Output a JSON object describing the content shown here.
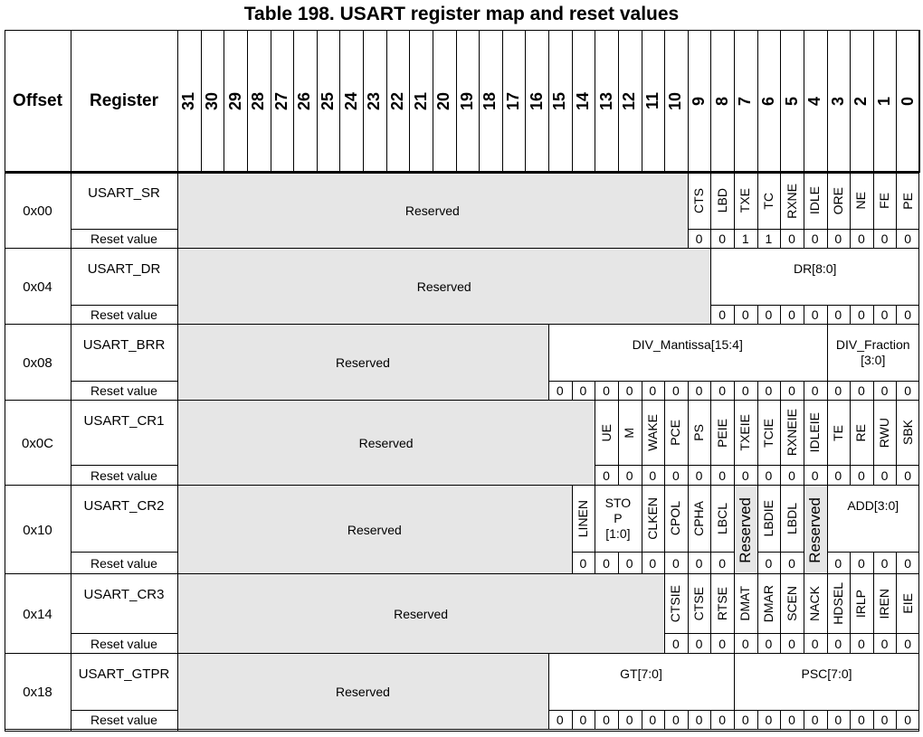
{
  "caption": "Table 198. USART register map and reset values",
  "header": {
    "offset": "Offset",
    "register": "Register"
  },
  "bits": [
    "31",
    "30",
    "29",
    "28",
    "27",
    "26",
    "25",
    "24",
    "23",
    "22",
    "21",
    "20",
    "19",
    "18",
    "17",
    "16",
    "15",
    "14",
    "13",
    "12",
    "11",
    "10",
    "9",
    "8",
    "7",
    "6",
    "5",
    "4",
    "3",
    "2",
    "1",
    "0"
  ],
  "reset_label": "Reset value",
  "rows": [
    {
      "offset": "0x00",
      "register": "USART_SR",
      "fields": [
        {
          "label": "Reserved",
          "hi": 31,
          "lo": 10,
          "gray": true
        },
        {
          "label": "CTS",
          "hi": 9,
          "lo": 9
        },
        {
          "label": "LBD",
          "hi": 8,
          "lo": 8
        },
        {
          "label": "TXE",
          "hi": 7,
          "lo": 7
        },
        {
          "label": "TC",
          "hi": 6,
          "lo": 6
        },
        {
          "label": "RXNE",
          "hi": 5,
          "lo": 5
        },
        {
          "label": "IDLE",
          "hi": 4,
          "lo": 4
        },
        {
          "label": "ORE",
          "hi": 3,
          "lo": 3
        },
        {
          "label": "NE",
          "hi": 2,
          "lo": 2
        },
        {
          "label": "FE",
          "hi": 1,
          "lo": 1
        },
        {
          "label": "PE",
          "hi": 0,
          "lo": 0
        }
      ],
      "reset": [
        "0",
        "0",
        "1",
        "1",
        "0",
        "0",
        "0",
        "0",
        "0",
        "0"
      ]
    },
    {
      "offset": "0x04",
      "register": "USART_DR",
      "fields": [
        {
          "label": "Reserved",
          "hi": 31,
          "lo": 9,
          "gray": true
        },
        {
          "label": "DR[8:0]",
          "hi": 8,
          "lo": 0
        }
      ],
      "reset": [
        "0",
        "0",
        "0",
        "0",
        "0",
        "0",
        "0",
        "0",
        "0"
      ]
    },
    {
      "offset": "0x08",
      "register": "USART_BRR",
      "fields": [
        {
          "label": "Reserved",
          "hi": 31,
          "lo": 16,
          "gray": true
        },
        {
          "label": "DIV_Mantissa[15:4]",
          "hi": 15,
          "lo": 4
        },
        {
          "label": "DIV_Fraction\n[3:0]",
          "hi": 3,
          "lo": 0
        }
      ],
      "reset": [
        "0",
        "0",
        "0",
        "0",
        "0",
        "0",
        "0",
        "0",
        "0",
        "0",
        "0",
        "0",
        "0",
        "0",
        "0",
        "0"
      ]
    },
    {
      "offset": "0x0C",
      "register": "USART_CR1",
      "fields": [
        {
          "label": "Reserved",
          "hi": 31,
          "lo": 14,
          "gray": true
        },
        {
          "label": "UE",
          "hi": 13,
          "lo": 13
        },
        {
          "label": "M",
          "hi": 12,
          "lo": 12
        },
        {
          "label": "WAKE",
          "hi": 11,
          "lo": 11
        },
        {
          "label": "PCE",
          "hi": 10,
          "lo": 10
        },
        {
          "label": "PS",
          "hi": 9,
          "lo": 9
        },
        {
          "label": "PEIE",
          "hi": 8,
          "lo": 8
        },
        {
          "label": "TXEIE",
          "hi": 7,
          "lo": 7
        },
        {
          "label": "TCIE",
          "hi": 6,
          "lo": 6
        },
        {
          "label": "RXNEIE",
          "hi": 5,
          "lo": 5
        },
        {
          "label": "IDLEIE",
          "hi": 4,
          "lo": 4
        },
        {
          "label": "TE",
          "hi": 3,
          "lo": 3
        },
        {
          "label": "RE",
          "hi": 2,
          "lo": 2
        },
        {
          "label": "RWU",
          "hi": 1,
          "lo": 1
        },
        {
          "label": "SBK",
          "hi": 0,
          "lo": 0
        }
      ],
      "reset": [
        "0",
        "0",
        "0",
        "0",
        "0",
        "0",
        "0",
        "0",
        "0",
        "0",
        "0",
        "0",
        "0",
        "0"
      ]
    },
    {
      "offset": "0x10",
      "register": "USART_CR2",
      "fields": [
        {
          "label": "Reserved",
          "hi": 31,
          "lo": 15,
          "gray": true
        },
        {
          "label": "LINEN",
          "hi": 14,
          "lo": 14
        },
        {
          "label": "STO\nP\n[1:0]",
          "hi": 13,
          "lo": 12
        },
        {
          "label": "CLKEN",
          "hi": 11,
          "lo": 11
        },
        {
          "label": "CPOL",
          "hi": 10,
          "lo": 10
        },
        {
          "label": "CPHA",
          "hi": 9,
          "lo": 9
        },
        {
          "label": "LBCL",
          "hi": 8,
          "lo": 8
        },
        {
          "label": "Reserved",
          "hi": 7,
          "lo": 7,
          "gray": true,
          "full": true
        },
        {
          "label": "LBDIE",
          "hi": 6,
          "lo": 6
        },
        {
          "label": "LBDL",
          "hi": 5,
          "lo": 5
        },
        {
          "label": "Reserved",
          "hi": 4,
          "lo": 4,
          "gray": true,
          "full": true
        },
        {
          "label": "ADD[3:0]",
          "hi": 3,
          "lo": 0
        }
      ],
      "reset": [
        "0",
        "0",
        "0",
        "0",
        "0",
        "0",
        "0",
        "",
        "0",
        "0",
        "",
        "0",
        "0",
        "0",
        "0"
      ]
    },
    {
      "offset": "0x14",
      "register": "USART_CR3",
      "fields": [
        {
          "label": "Reserved",
          "hi": 31,
          "lo": 11,
          "gray": true
        },
        {
          "label": "CTSIE",
          "hi": 10,
          "lo": 10
        },
        {
          "label": "CTSE",
          "hi": 9,
          "lo": 9
        },
        {
          "label": "RTSE",
          "hi": 8,
          "lo": 8
        },
        {
          "label": "DMAT",
          "hi": 7,
          "lo": 7
        },
        {
          "label": "DMAR",
          "hi": 6,
          "lo": 6
        },
        {
          "label": "SCEN",
          "hi": 5,
          "lo": 5
        },
        {
          "label": "NACK",
          "hi": 4,
          "lo": 4
        },
        {
          "label": "HDSEL",
          "hi": 3,
          "lo": 3
        },
        {
          "label": "IRLP",
          "hi": 2,
          "lo": 2
        },
        {
          "label": "IREN",
          "hi": 1,
          "lo": 1
        },
        {
          "label": "EIE",
          "hi": 0,
          "lo": 0
        }
      ],
      "reset": [
        "0",
        "0",
        "0",
        "0",
        "0",
        "0",
        "0",
        "0",
        "0",
        "0",
        "0"
      ]
    },
    {
      "offset": "0x18",
      "register": "USART_GTPR",
      "fields": [
        {
          "label": "Reserved",
          "hi": 31,
          "lo": 16,
          "gray": true
        },
        {
          "label": "GT[7:0]",
          "hi": 15,
          "lo": 8
        },
        {
          "label": "PSC[7:0]",
          "hi": 7,
          "lo": 0
        }
      ],
      "reset": [
        "0",
        "0",
        "0",
        "0",
        "0",
        "0",
        "0",
        "0",
        "0",
        "0",
        "0",
        "0",
        "0",
        "0",
        "0",
        "0"
      ]
    }
  ]
}
